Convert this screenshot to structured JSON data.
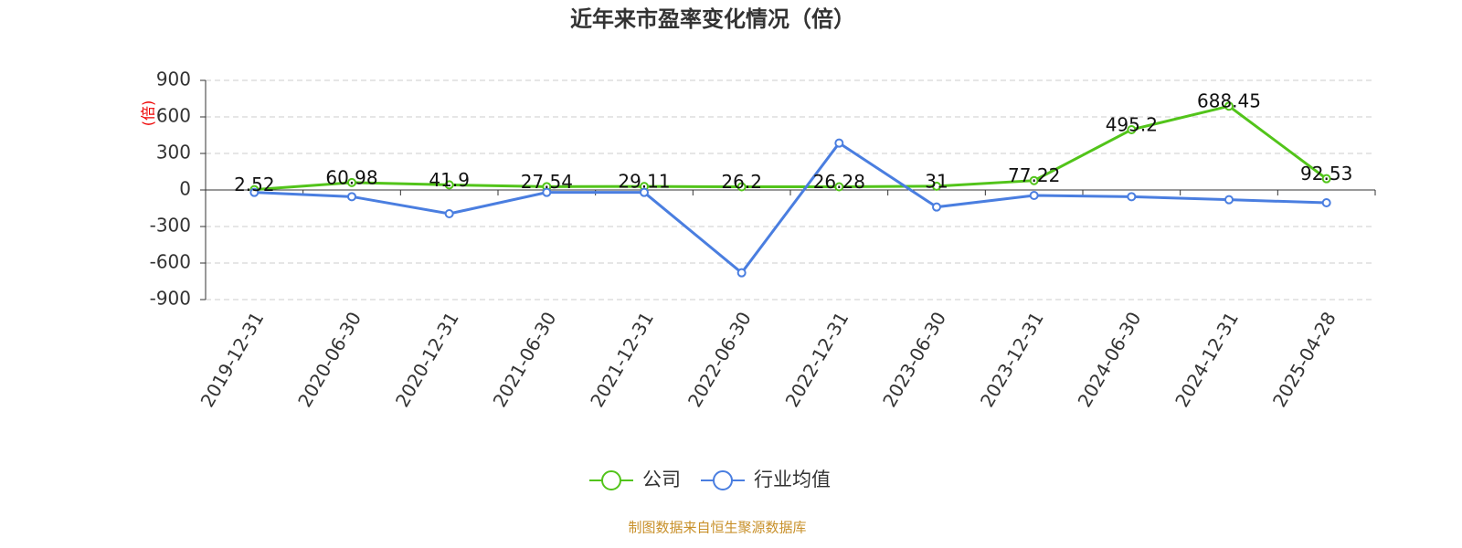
{
  "chart_data": {
    "type": "line",
    "title": "近年来市盈率变化情况（倍）",
    "y_label": "(倍)",
    "categories": [
      "2019-12-31",
      "2020-06-30",
      "2020-12-31",
      "2021-06-30",
      "2021-12-31",
      "2022-06-30",
      "2022-12-31",
      "2023-06-30",
      "2023-12-31",
      "2024-06-30",
      "2024-12-31",
      "2025-04-28"
    ],
    "series": [
      {
        "name": "公司",
        "color": "#52c41a",
        "values": [
          2.52,
          60.98,
          41.9,
          27.54,
          29.11,
          26.2,
          26.28,
          31,
          77.22,
          495.2,
          688.45,
          92.53
        ]
      },
      {
        "name": "行业均值",
        "color": "#4a7ee0",
        "values": [
          -20,
          -55,
          -195,
          -20,
          -20,
          -680,
          385,
          -140,
          -45,
          -55,
          -80,
          -105
        ]
      }
    ],
    "ylim": [
      -900,
      900
    ],
    "yticks": [
      -900,
      -600,
      -300,
      0,
      300,
      600,
      900
    ],
    "grid": true,
    "source": "制图数据来自恒生聚源数据库"
  }
}
